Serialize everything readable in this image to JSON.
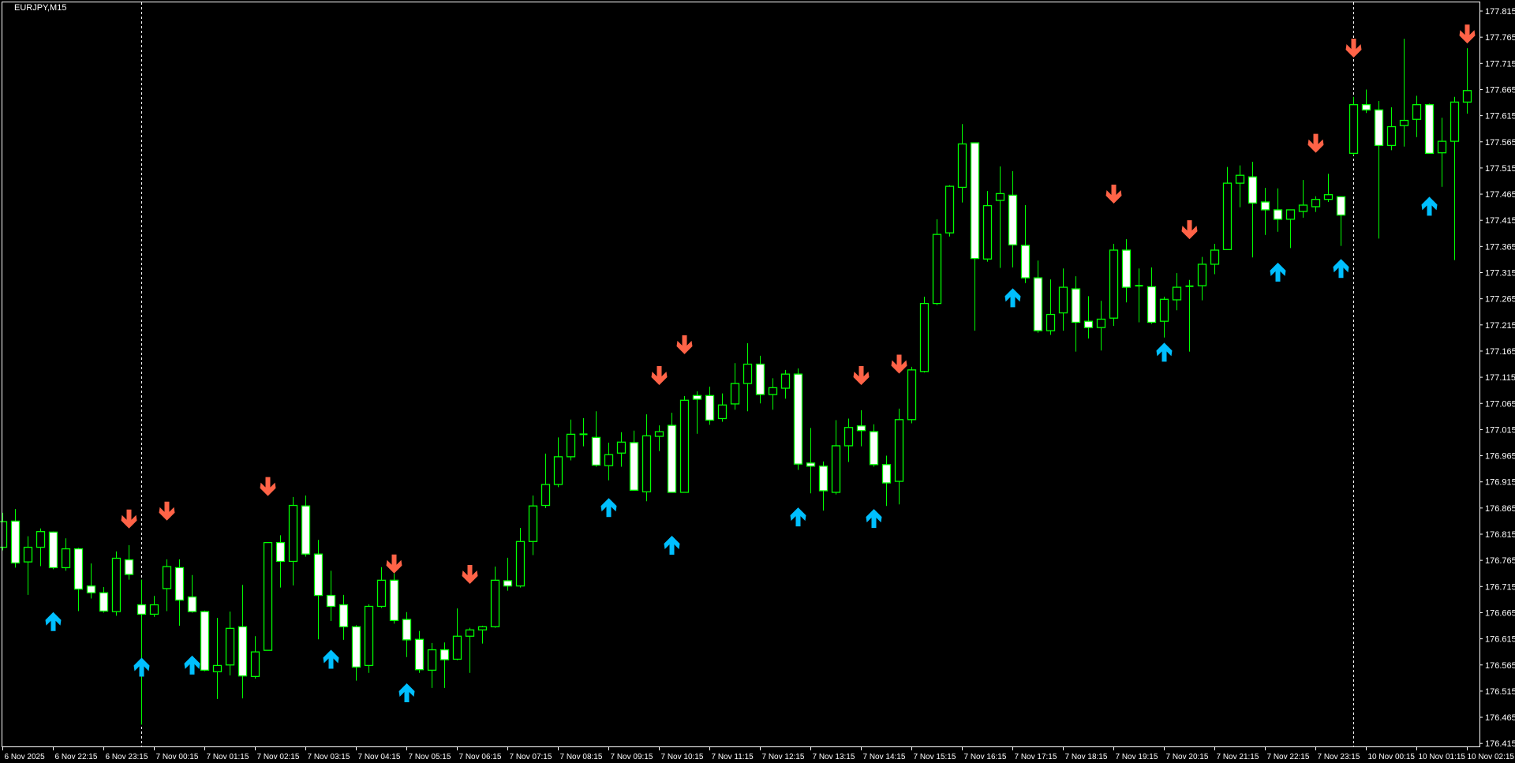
{
  "header": {
    "symbol_timeframe": "EURJPY,M15"
  },
  "colors": {
    "background": "#000000",
    "candle_outline": "#00ff00",
    "bear_body": "#ffffff",
    "bull_body": "#000000",
    "sell_arrow": "#ff6347",
    "buy_arrow": "#00bfff",
    "axis": "#ffffff"
  },
  "chart_data": {
    "type": "candlestick",
    "title": "EURJPY,M15",
    "ylim": [
      176.415,
      177.815
    ],
    "grid": false,
    "price_ticks": [
      "177.815",
      "177.765",
      "177.715",
      "177.665",
      "177.615",
      "177.565",
      "177.515",
      "177.465",
      "177.415",
      "177.365",
      "177.315",
      "177.265",
      "177.215",
      "177.165",
      "177.115",
      "177.065",
      "177.015",
      "176.965",
      "176.915",
      "176.865",
      "176.815",
      "176.765",
      "176.715",
      "176.665",
      "176.615",
      "176.565",
      "176.515",
      "176.465",
      "176.415"
    ],
    "time_ticks": [
      "6 Nov 2025",
      "6 Nov 22:15",
      "6 Nov 23:15",
      "7 Nov 00:15",
      "7 Nov 01:15",
      "7 Nov 02:15",
      "7 Nov 03:15",
      "7 Nov 04:15",
      "7 Nov 05:15",
      "7 Nov 06:15",
      "7 Nov 07:15",
      "7 Nov 08:15",
      "7 Nov 09:15",
      "7 Nov 10:15",
      "7 Nov 11:15",
      "7 Nov 12:15",
      "7 Nov 13:15",
      "7 Nov 14:15",
      "7 Nov 15:15",
      "7 Nov 16:15",
      "7 Nov 17:15",
      "7 Nov 18:15",
      "7 Nov 19:15",
      "7 Nov 20:15",
      "7 Nov 21:15",
      "7 Nov 22:15",
      "7 Nov 23:15",
      "10 Nov 00:15",
      "10 Nov 01:15",
      "10 Nov 02:15"
    ],
    "bars_per_time_tick": 4,
    "period_separators_at_bar": [
      11,
      107
    ],
    "candles_ohlc": [
      [
        176.79,
        176.856,
        176.784,
        176.839
      ],
      [
        176.84,
        176.863,
        176.751,
        176.76
      ],
      [
        176.762,
        176.811,
        176.699,
        176.79
      ],
      [
        176.79,
        176.826,
        176.754,
        176.82
      ],
      [
        176.819,
        176.82,
        176.748,
        176.751
      ],
      [
        176.751,
        176.807,
        176.745,
        176.787
      ],
      [
        176.787,
        176.789,
        176.668,
        176.71
      ],
      [
        176.716,
        176.759,
        176.692,
        176.703
      ],
      [
        176.703,
        176.714,
        176.665,
        176.668
      ],
      [
        176.667,
        176.782,
        176.659,
        176.769
      ],
      [
        176.766,
        176.794,
        176.728,
        176.738
      ],
      [
        176.68,
        176.728,
        176.451,
        176.662
      ],
      [
        176.662,
        176.697,
        176.657,
        176.68
      ],
      [
        176.711,
        176.767,
        176.668,
        176.753
      ],
      [
        176.751,
        176.767,
        176.64,
        176.689
      ],
      [
        176.695,
        176.737,
        176.665,
        176.667
      ],
      [
        176.667,
        176.669,
        176.553,
        176.555
      ],
      [
        176.552,
        176.655,
        176.5,
        176.564
      ],
      [
        176.565,
        176.667,
        176.545,
        176.635
      ],
      [
        176.638,
        176.718,
        176.501,
        176.544
      ],
      [
        176.543,
        176.62,
        176.539,
        176.59
      ],
      [
        176.593,
        176.799,
        176.593,
        176.799
      ],
      [
        176.799,
        176.813,
        176.713,
        176.763
      ],
      [
        176.763,
        176.886,
        176.717,
        176.87
      ],
      [
        176.869,
        176.889,
        176.772,
        176.777
      ],
      [
        176.777,
        176.804,
        176.614,
        176.698
      ],
      [
        176.698,
        176.745,
        176.649,
        176.677
      ],
      [
        176.68,
        176.699,
        176.613,
        176.638
      ],
      [
        176.638,
        176.641,
        176.535,
        176.561
      ],
      [
        176.564,
        176.681,
        176.55,
        176.677
      ],
      [
        176.677,
        176.752,
        176.674,
        176.727
      ],
      [
        176.727,
        176.74,
        176.644,
        176.65
      ],
      [
        176.652,
        176.666,
        176.58,
        176.613
      ],
      [
        176.614,
        176.63,
        176.55,
        176.556
      ],
      [
        176.555,
        176.607,
        176.521,
        176.594
      ],
      [
        176.594,
        176.608,
        176.521,
        176.575
      ],
      [
        176.576,
        176.673,
        176.574,
        176.62
      ],
      [
        176.62,
        176.636,
        176.55,
        176.632
      ],
      [
        176.632,
        176.64,
        176.606,
        176.638
      ],
      [
        176.638,
        176.753,
        176.636,
        176.727
      ],
      [
        176.726,
        176.77,
        176.707,
        176.716
      ],
      [
        176.716,
        176.827,
        176.713,
        176.801
      ],
      [
        176.801,
        176.889,
        176.775,
        176.869
      ],
      [
        176.87,
        176.969,
        176.865,
        176.91
      ],
      [
        176.91,
        177.0,
        176.905,
        176.963
      ],
      [
        176.963,
        177.034,
        176.956,
        177.006
      ],
      [
        177.004,
        177.037,
        176.983,
        177.006
      ],
      [
        177.0,
        177.05,
        176.944,
        176.947
      ],
      [
        176.946,
        176.99,
        176.918,
        176.967
      ],
      [
        176.97,
        177.01,
        176.944,
        176.991
      ],
      [
        176.99,
        177.013,
        176.899,
        176.899
      ],
      [
        176.896,
        177.044,
        176.878,
        177.003
      ],
      [
        177.002,
        177.023,
        176.974,
        177.011
      ],
      [
        177.023,
        177.047,
        176.895,
        176.895
      ],
      [
        176.895,
        177.079,
        176.895,
        177.071
      ],
      [
        177.08,
        177.088,
        177.007,
        177.073
      ],
      [
        177.08,
        177.097,
        177.024,
        177.033
      ],
      [
        177.036,
        177.084,
        177.03,
        177.062
      ],
      [
        177.064,
        177.142,
        177.053,
        177.103
      ],
      [
        177.103,
        177.18,
        177.05,
        177.14
      ],
      [
        177.14,
        177.156,
        177.065,
        177.082
      ],
      [
        177.082,
        177.113,
        177.053,
        177.095
      ],
      [
        177.094,
        177.129,
        177.074,
        177.121
      ],
      [
        177.121,
        177.132,
        176.938,
        176.949
      ],
      [
        176.951,
        177.018,
        176.893,
        176.945
      ],
      [
        176.945,
        176.954,
        176.86,
        176.898
      ],
      [
        176.895,
        177.033,
        176.891,
        176.984
      ],
      [
        176.984,
        177.036,
        176.953,
        177.019
      ],
      [
        177.022,
        177.052,
        176.983,
        177.013
      ],
      [
        177.011,
        177.025,
        176.944,
        176.948
      ],
      [
        176.948,
        176.965,
        176.869,
        176.913
      ],
      [
        176.916,
        177.055,
        176.872,
        177.034
      ],
      [
        177.034,
        177.135,
        177.027,
        177.129
      ],
      [
        177.126,
        177.269,
        177.124,
        177.256
      ],
      [
        177.256,
        177.417,
        177.253,
        177.388
      ],
      [
        177.391,
        177.482,
        177.384,
        177.48
      ],
      [
        177.478,
        177.599,
        177.449,
        177.561
      ],
      [
        177.563,
        177.563,
        177.204,
        177.342
      ],
      [
        177.341,
        177.471,
        177.336,
        177.443
      ],
      [
        177.453,
        177.518,
        177.324,
        177.466
      ],
      [
        177.463,
        177.509,
        177.325,
        177.368
      ],
      [
        177.367,
        177.444,
        177.295,
        177.305
      ],
      [
        177.305,
        177.338,
        177.2,
        177.204
      ],
      [
        177.204,
        177.302,
        177.196,
        177.235
      ],
      [
        177.238,
        177.323,
        177.204,
        177.287
      ],
      [
        177.284,
        177.308,
        177.164,
        177.22
      ],
      [
        177.222,
        177.27,
        177.189,
        177.21
      ],
      [
        177.21,
        177.261,
        177.166,
        177.226
      ],
      [
        177.228,
        177.37,
        177.213,
        177.358
      ],
      [
        177.358,
        177.379,
        177.258,
        177.287
      ],
      [
        177.29,
        177.323,
        177.22,
        177.29
      ],
      [
        177.288,
        177.325,
        177.217,
        177.22
      ],
      [
        177.222,
        177.269,
        177.191,
        177.264
      ],
      [
        177.263,
        177.314,
        177.243,
        177.287
      ],
      [
        177.289,
        177.301,
        177.164,
        177.289
      ],
      [
        177.29,
        177.345,
        177.262,
        177.331
      ],
      [
        177.331,
        177.37,
        177.312,
        177.358
      ],
      [
        177.359,
        177.517,
        177.359,
        177.486
      ],
      [
        177.486,
        177.52,
        177.44,
        177.501
      ],
      [
        177.498,
        177.527,
        177.344,
        177.448
      ],
      [
        177.45,
        177.477,
        177.387,
        177.435
      ],
      [
        177.435,
        177.476,
        177.393,
        177.417
      ],
      [
        177.417,
        177.435,
        177.362,
        177.435
      ],
      [
        177.432,
        177.492,
        177.42,
        177.444
      ],
      [
        177.441,
        177.461,
        177.431,
        177.455
      ],
      [
        177.455,
        177.504,
        177.45,
        177.464
      ],
      [
        177.46,
        177.461,
        177.366,
        177.425
      ],
      [
        177.543,
        177.651,
        177.539,
        177.636
      ],
      [
        177.636,
        177.665,
        177.62,
        177.626
      ],
      [
        177.626,
        177.643,
        177.38,
        177.558
      ],
      [
        177.558,
        177.631,
        177.549,
        177.594
      ],
      [
        177.596,
        177.762,
        177.556,
        177.606
      ],
      [
        177.608,
        177.653,
        177.574,
        177.636
      ],
      [
        177.636,
        177.638,
        177.543,
        177.543
      ],
      [
        177.544,
        177.611,
        177.479,
        177.566
      ],
      [
        177.566,
        177.651,
        177.339,
        177.641
      ],
      [
        177.641,
        177.744,
        177.619,
        177.663
      ]
    ],
    "sell_arrows": [
      {
        "bar": 10,
        "price": 176.826
      },
      {
        "bar": 13,
        "price": 176.841
      },
      {
        "bar": 21,
        "price": 176.888
      },
      {
        "bar": 31,
        "price": 176.74
      },
      {
        "bar": 37,
        "price": 176.72
      },
      {
        "bar": 52,
        "price": 177.1
      },
      {
        "bar": 54,
        "price": 177.159
      },
      {
        "bar": 68,
        "price": 177.1
      },
      {
        "bar": 71,
        "price": 177.122
      },
      {
        "bar": 88,
        "price": 177.447
      },
      {
        "bar": 94,
        "price": 177.379
      },
      {
        "bar": 104,
        "price": 177.544
      },
      {
        "bar": 107,
        "price": 177.726
      },
      {
        "bar": 116,
        "price": 177.753
      }
    ],
    "buy_arrows": [
      {
        "bar": 4,
        "price": 176.666
      },
      {
        "bar": 11,
        "price": 176.579
      },
      {
        "bar": 15,
        "price": 176.583
      },
      {
        "bar": 26,
        "price": 176.594
      },
      {
        "bar": 32,
        "price": 176.53
      },
      {
        "bar": 48,
        "price": 176.884
      },
      {
        "bar": 53,
        "price": 176.812
      },
      {
        "bar": 63,
        "price": 176.866
      },
      {
        "bar": 69,
        "price": 176.863
      },
      {
        "bar": 80,
        "price": 177.285
      },
      {
        "bar": 92,
        "price": 177.181
      },
      {
        "bar": 101,
        "price": 177.334
      },
      {
        "bar": 106,
        "price": 177.341
      },
      {
        "bar": 113,
        "price": 177.46
      }
    ]
  }
}
